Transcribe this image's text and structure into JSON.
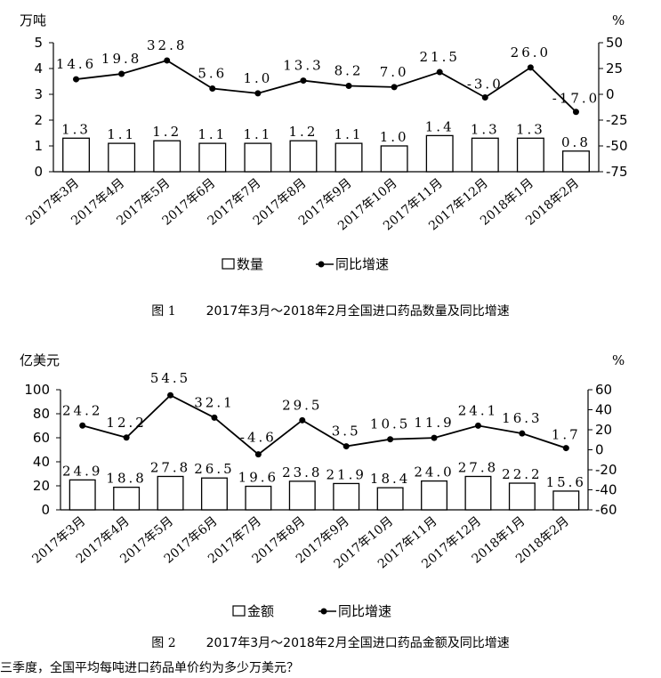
{
  "chart_data": [
    {
      "type": "bar",
      "y_unit": "万吨",
      "y2_unit": "%",
      "categories": [
        "2017年3月",
        "2017年4月",
        "2017年5月",
        "2017年6月",
        "2017年7月",
        "2017年8月",
        "2017年9月",
        "2017年10月",
        "2017年11月",
        "2017年12月",
        "2018年1月",
        "2018年2月"
      ],
      "series": [
        {
          "name": "数量",
          "type": "bar",
          "axis": "left",
          "values": [
            1.3,
            1.1,
            1.2,
            1.1,
            1.1,
            1.2,
            1.1,
            1.0,
            1.4,
            1.3,
            1.3,
            0.8
          ],
          "labels": [
            "1.3",
            "1.1",
            "1.2",
            "1.1",
            "1.1",
            "1.2",
            "1.1",
            "1.0",
            "1.4",
            "1.3",
            "1.3",
            "0.8"
          ]
        },
        {
          "name": "同比增速",
          "type": "line",
          "axis": "right",
          "values": [
            14.6,
            19.8,
            32.8,
            5.6,
            1.0,
            13.3,
            8.2,
            7.0,
            21.5,
            -3.0,
            26.0,
            -17.0
          ],
          "labels": [
            "14.6",
            "19.8",
            "32.8",
            "5.6",
            "1.0",
            "13.3",
            "8.2",
            "7.0",
            "21.5",
            "-3.0",
            "26.0",
            "-17.0"
          ]
        }
      ],
      "ylim": [
        0,
        5
      ],
      "yticks": [
        "0",
        "1",
        "2",
        "3",
        "4",
        "5"
      ],
      "y2lim": [
        -75,
        50
      ],
      "y2ticks": [
        "-75",
        "-50",
        "-25",
        "0",
        "25",
        "50"
      ],
      "legend": "bottom",
      "caption_label": "图 1",
      "caption_text": "2017年3月～2018年2月全国进口药品数量及同比增速"
    },
    {
      "type": "bar",
      "y_unit": "亿美元",
      "y2_unit": "%",
      "categories": [
        "2017年3月",
        "2017年4月",
        "2017年5月",
        "2017年6月",
        "2017年7月",
        "2017年8月",
        "2017年9月",
        "2017年10月",
        "2017年11月",
        "2017年12月",
        "2018年1月",
        "2018年2月"
      ],
      "series": [
        {
          "name": "金额",
          "type": "bar",
          "axis": "left",
          "values": [
            24.9,
            18.8,
            27.8,
            26.5,
            19.6,
            23.8,
            21.9,
            18.4,
            24.0,
            27.8,
            22.2,
            15.6
          ],
          "labels": [
            "24.9",
            "18.8",
            "27.8",
            "26.5",
            "19.6",
            "23.8",
            "21.9",
            "18.4",
            "24.0",
            "27.8",
            "22.2",
            "15.6"
          ]
        },
        {
          "name": "同比增速",
          "type": "line",
          "axis": "right",
          "values": [
            24.2,
            12.2,
            54.5,
            32.1,
            -4.6,
            29.5,
            3.5,
            10.5,
            11.9,
            24.1,
            16.3,
            1.7
          ],
          "labels": [
            "24.2",
            "12.2",
            "54.5",
            "32.1",
            "-4.6",
            "29.5",
            "3.5",
            "10.5",
            "11.9",
            "24.1",
            "16.3",
            "1.7"
          ]
        }
      ],
      "ylim": [
        0,
        100
      ],
      "yticks": [
        "0",
        "20",
        "40",
        "60",
        "80",
        "100"
      ],
      "y2lim": [
        -60,
        60
      ],
      "y2ticks": [
        "-60",
        "-40",
        "-20",
        "0",
        "20",
        "40",
        "60"
      ],
      "legend": "bottom",
      "caption_label": "图 2",
      "caption_text": "2017年3月～2018年2月全国进口药品金额及同比增速"
    }
  ],
  "footer_text": "三季度，全国平均每吨进口药品单价约为多少万美元？"
}
